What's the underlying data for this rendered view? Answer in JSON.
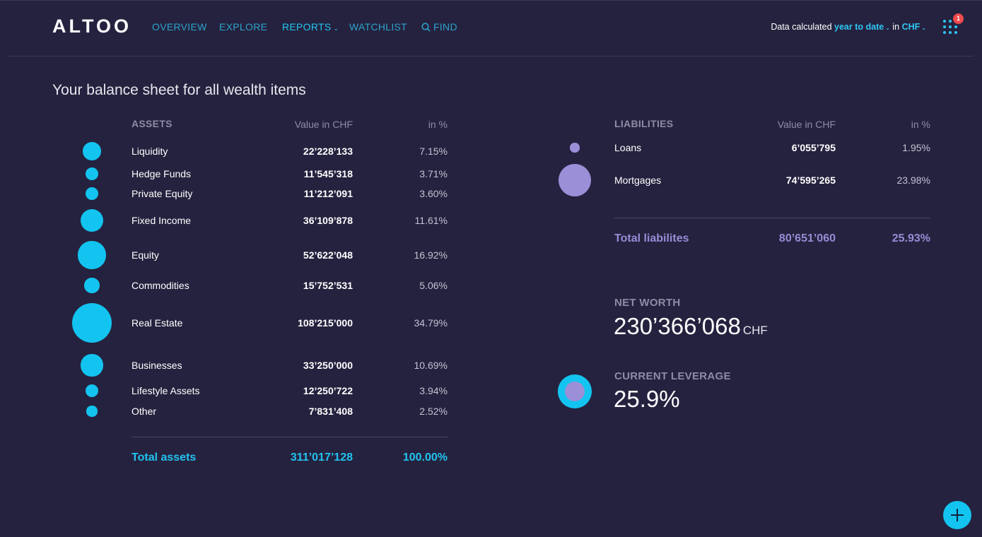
{
  "app": {
    "logo": "ALTOO"
  },
  "nav": {
    "overview": "OVERVIEW",
    "explore": "EXPLORE",
    "reports": "REPORTS",
    "watchlist": "WATCHLIST",
    "find": "FIND"
  },
  "calc": {
    "prefix": "Data calculated",
    "period": "year to date",
    "in": "in",
    "currency": "CHF"
  },
  "notifications": {
    "count": "1"
  },
  "page": {
    "title": "Your balance sheet for all wealth items"
  },
  "assets": {
    "heading": "ASSETS",
    "value_header": "Value in CHF",
    "pct_header": "in %",
    "items": [
      {
        "label": "Liquidity",
        "value": "22’228’133",
        "pct": "7.15%",
        "share": 7.15
      },
      {
        "label": "Hedge Funds",
        "value": "11’545’318",
        "pct": "3.71%",
        "share": 3.71
      },
      {
        "label": "Private Equity",
        "value": "11’212’091",
        "pct": "3.60%",
        "share": 3.6
      },
      {
        "label": "Fixed Income",
        "value": "36’109’878",
        "pct": "11.61%",
        "share": 11.61
      },
      {
        "label": "Equity",
        "value": "52’622’048",
        "pct": "16.92%",
        "share": 16.92
      },
      {
        "label": "Commodities",
        "value": "15’752’531",
        "pct": "5.06%",
        "share": 5.06
      },
      {
        "label": "Real Estate",
        "value": "108’215’000",
        "pct": "34.79%",
        "share": 34.79
      },
      {
        "label": "Businesses",
        "value": "33’250’000",
        "pct": "10.69%",
        "share": 10.69
      },
      {
        "label": "Lifestyle Assets",
        "value": "12’250’722",
        "pct": "3.94%",
        "share": 3.94
      },
      {
        "label": "Other",
        "value": "7’831’408",
        "pct": "2.52%",
        "share": 2.52
      }
    ],
    "total_label": "Total assets",
    "total_value": "311’017’128",
    "total_pct": "100.00%"
  },
  "liabilities": {
    "heading": "LIABILITIES",
    "value_header": "Value in CHF",
    "pct_header": "in %",
    "items": [
      {
        "label": "Loans",
        "value": "6’055’795",
        "pct": "1.95%",
        "share": 1.95
      },
      {
        "label": "Mortgages",
        "value": "74’595’265",
        "pct": "23.98%",
        "share": 23.98
      }
    ],
    "total_label": "Total liabilites",
    "total_value": "80’651’060",
    "total_pct": "25.93%"
  },
  "net_worth": {
    "label": "NET WORTH",
    "value": "230’366’068",
    "unit": "CHF"
  },
  "leverage": {
    "label": "CURRENT LEVERAGE",
    "value": "25.9%",
    "fraction": 0.259
  },
  "colors": {
    "background": "#25223f",
    "asset": "#13c4f0",
    "liability": "#9b8fd8",
    "muted": "#8e8ca4"
  },
  "icons": {
    "find": "search-icon",
    "apps": "grid-icon",
    "fab": "plus-icon"
  }
}
